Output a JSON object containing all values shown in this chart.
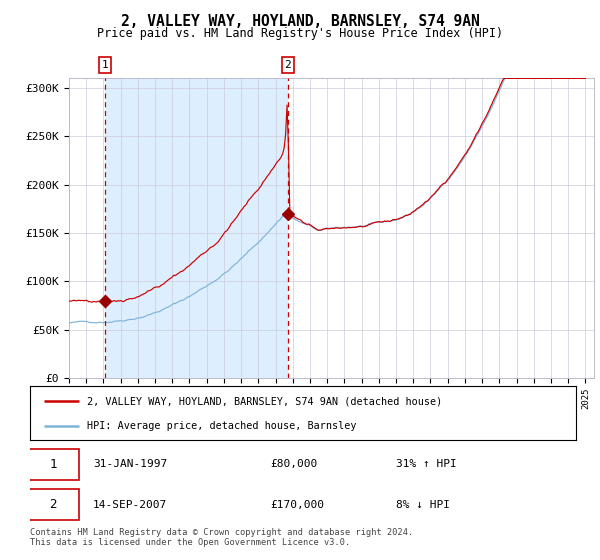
{
  "title": "2, VALLEY WAY, HOYLAND, BARNSLEY, S74 9AN",
  "subtitle": "Price paid vs. HM Land Registry's House Price Index (HPI)",
  "legend_line1": "2, VALLEY WAY, HOYLAND, BARNSLEY, S74 9AN (detached house)",
  "legend_line2": "HPI: Average price, detached house, Barnsley",
  "sale1_date": "31-JAN-1997",
  "sale1_price": 80000,
  "sale1_hpi": "31% ↑ HPI",
  "sale2_date": "14-SEP-2007",
  "sale2_price": 170000,
  "sale2_hpi": "8% ↓ HPI",
  "hpi_color": "#7fb4d8",
  "price_color": "#cc0000",
  "dot_color": "#990000",
  "vline_color": "#cc0000",
  "bg_color": "#ffffff",
  "shade_color": "#ddeeff",
  "grid_color": "#ccccdd",
  "ylim": [
    0,
    310000
  ],
  "yticks": [
    0,
    50000,
    100000,
    150000,
    200000,
    250000,
    300000
  ],
  "ytick_labels": [
    "£0",
    "£50K",
    "£100K",
    "£150K",
    "£200K",
    "£250K",
    "£300K"
  ],
  "xticks": [
    1995,
    1996,
    1997,
    1998,
    1999,
    2000,
    2001,
    2002,
    2003,
    2004,
    2005,
    2006,
    2007,
    2008,
    2009,
    2010,
    2011,
    2012,
    2013,
    2014,
    2015,
    2016,
    2017,
    2018,
    2019,
    2020,
    2021,
    2022,
    2023,
    2024,
    2025
  ],
  "sale1_x": 1997.08,
  "sale2_x": 2007.71,
  "footer": "Contains HM Land Registry data © Crown copyright and database right 2024.\nThis data is licensed under the Open Government Licence v3.0."
}
